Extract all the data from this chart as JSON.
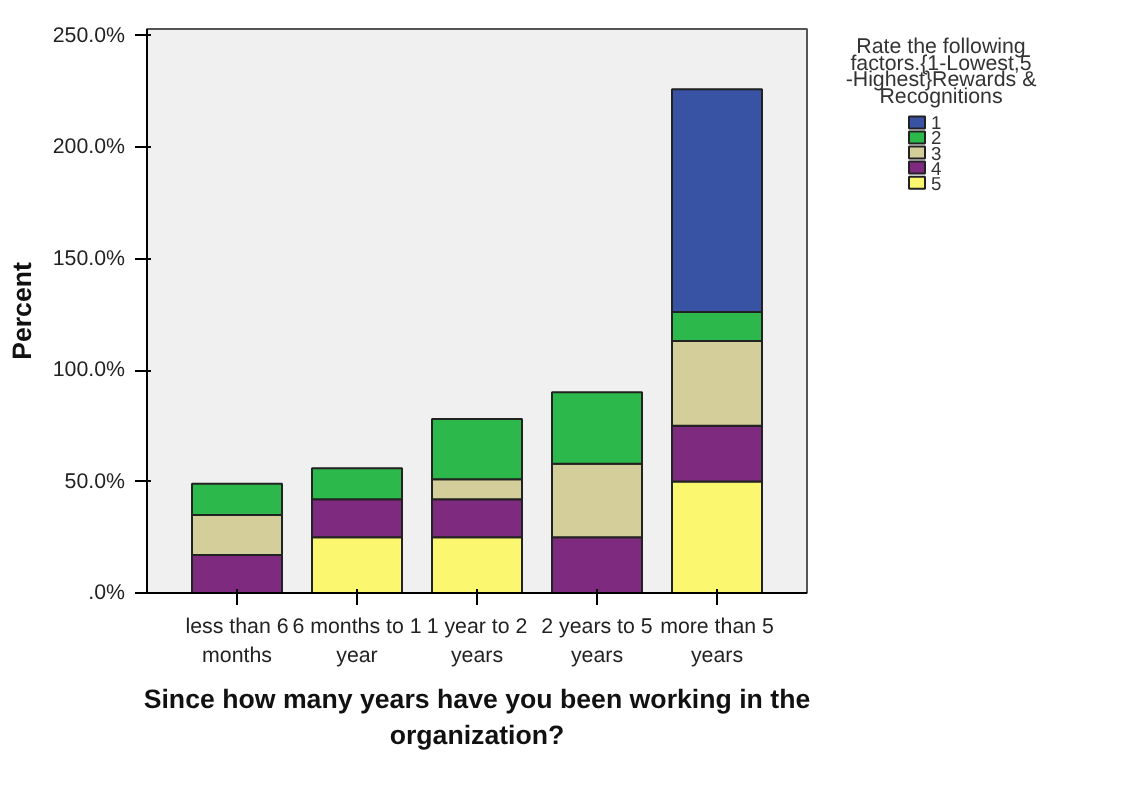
{
  "chart_data": {
    "type": "bar",
    "stacked": true,
    "xlabel": "Since how many years have you been working in the organization?",
    "ylabel": "Percent",
    "legend_title": "Rate the following factors.{1-Lowest,5 -Highest}Rewards & Recognitions",
    "legend": "right",
    "categories": [
      "less than 6 months",
      "6 months to 1 year",
      "1 year to 2 years",
      "2 years to 5 years",
      "more than 5 years"
    ],
    "ylim": [
      0,
      253
    ],
    "yticks": [
      {
        "value": 0,
        "label": ".0%"
      },
      {
        "value": 50,
        "label": "50.0%"
      },
      {
        "value": 100,
        "label": "100.0%"
      },
      {
        "value": 150,
        "label": "150.0%"
      },
      {
        "value": 200,
        "label": "200.0%"
      },
      {
        "value": 250,
        "label": "250.0%"
      }
    ],
    "series": [
      {
        "name": "5",
        "color": "#fbf870",
        "values": [
          null,
          25,
          25,
          null,
          50
        ]
      },
      {
        "name": "4",
        "color": "#7e2a7e",
        "values": [
          17,
          17,
          17,
          25,
          25
        ]
      },
      {
        "name": "3",
        "color": "#d3ce9a",
        "values": [
          18,
          null,
          9,
          33,
          38
        ]
      },
      {
        "name": "2",
        "color": "#2db84b",
        "values": [
          14,
          14,
          27,
          32,
          13
        ]
      },
      {
        "name": "1",
        "color": "#3953a4",
        "values": [
          null,
          null,
          null,
          null,
          100
        ]
      }
    ]
  }
}
